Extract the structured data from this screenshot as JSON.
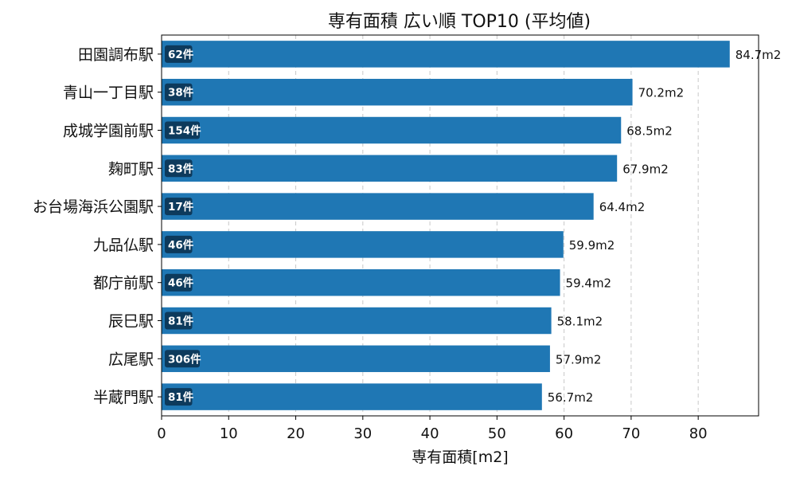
{
  "chart_data": {
    "type": "bar",
    "orientation": "horizontal",
    "title": "専有面積 広い順 TOP10 (平均値)",
    "xlabel": "専有面積[m2]",
    "ylabel": "",
    "xlim": [
      0,
      89
    ],
    "xticks": [
      0,
      10,
      20,
      30,
      40,
      50,
      60,
      70,
      80
    ],
    "grid": "x-dashed",
    "bar_color": "#1f77b4",
    "count_badge_color": "#0d3a5c",
    "value_suffix": "m2",
    "categories": [
      "田園調布駅",
      "青山一丁目駅",
      "成城学園前駅",
      "麹町駅",
      "お台場海浜公園駅",
      "九品仏駅",
      "都庁前駅",
      "辰巳駅",
      "広尾駅",
      "半蔵門駅"
    ],
    "values": [
      84.7,
      70.2,
      68.5,
      67.9,
      64.4,
      59.9,
      59.4,
      58.1,
      57.9,
      56.7
    ],
    "counts": [
      "62件",
      "38件",
      "154件",
      "83件",
      "17件",
      "46件",
      "46件",
      "81件",
      "306件",
      "81件"
    ]
  }
}
